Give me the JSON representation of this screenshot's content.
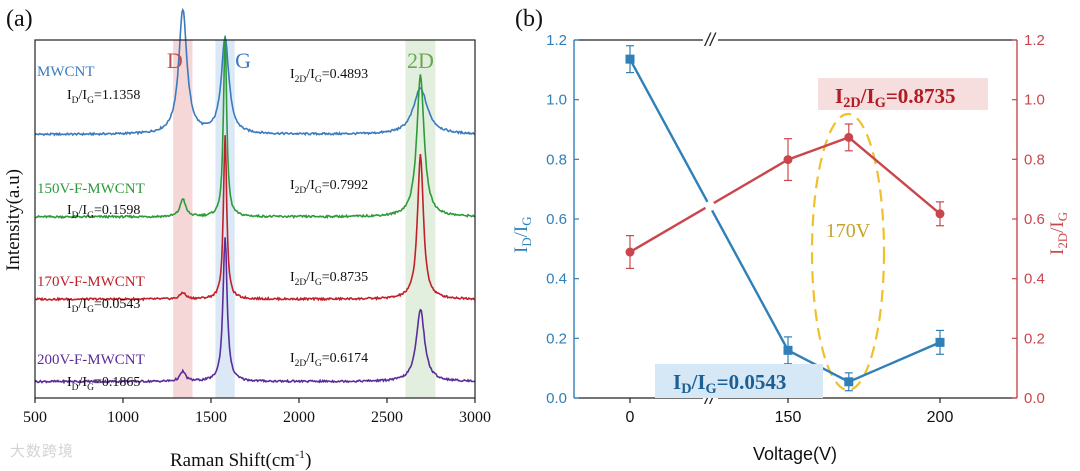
{
  "chart_data": [
    {
      "type": "line",
      "panel_label": "(a)",
      "title": "",
      "xlabel": "Raman Shift(cm",
      "xlabel_sup": "-1",
      "xlabel_end": ")",
      "ylabel": "Intensity(a.u)",
      "xlim": [
        500,
        3000
      ],
      "x_ticks": [
        500,
        1000,
        1500,
        2000,
        2500,
        3000
      ],
      "band_labels": [
        {
          "text": "D",
          "center": 1340,
          "width": 110,
          "color": "#c0504d",
          "fill": "#f2c9c9"
        },
        {
          "text": "G",
          "center": 1580,
          "width": 110,
          "color": "#3a7bbf",
          "fill": "#cfe2f3"
        },
        {
          "text": "2D",
          "center": 2690,
          "width": 170,
          "color": "#6aa84f",
          "fill": "#d9ead3"
        }
      ],
      "series": [
        {
          "name": "MWCNT",
          "color": "#3a7bbf",
          "offset": 0.8,
          "scale": 0.58,
          "peaks": [
            [
              1340,
              0.65,
              28
            ],
            [
              1580,
              0.5,
              26
            ],
            [
              2690,
              0.24,
              48
            ]
          ],
          "id_ig_label": "I",
          "id_ig_value": "=1.1358",
          "i2d_ig_value": "=0.4893"
        },
        {
          "name": "150V-F-MWCNT",
          "color": "#2e9b3a",
          "offset": 0.55,
          "scale": 1.0,
          "peaks": [
            [
              1340,
              0.055,
              18
            ],
            [
              1580,
              0.55,
              11
            ],
            [
              2690,
              0.43,
              25
            ]
          ],
          "id_ig_value": "=0.1598",
          "i2d_ig_value": "=0.7992"
        },
        {
          "name": "170V-F-MWCNT",
          "color": "#c0202a",
          "offset": 0.3,
          "scale": 1.0,
          "peaks": [
            [
              1340,
              0.02,
              18
            ],
            [
              1580,
              0.5,
              11
            ],
            [
              2690,
              0.44,
              20
            ]
          ],
          "id_ig_value": "=0.0543",
          "i2d_ig_value": "=0.8735"
        },
        {
          "name": "200V-F-MWCNT",
          "color": "#5b2d99",
          "offset": 0.05,
          "scale": 1.0,
          "peaks": [
            [
              1340,
              0.03,
              18
            ],
            [
              1580,
              0.44,
              14
            ],
            [
              2690,
              0.22,
              28
            ]
          ],
          "id_ig_value": "=0.1865",
          "i2d_ig_value": "=0.6174"
        }
      ]
    },
    {
      "type": "line",
      "panel_label": "(b)",
      "xlabel": "Voltage(V)",
      "ylabel_left": "I",
      "ylabel_right": "I",
      "x_categories": [
        "0",
        "150",
        "200"
      ],
      "x_values": [
        0,
        150,
        170,
        200
      ],
      "ylim": [
        0,
        1.2
      ],
      "y_ticks": [
        "0.0",
        "0.2",
        "0.4",
        "0.6",
        "0.8",
        "1.0",
        "1.2"
      ],
      "axis_break": "//",
      "series": [
        {
          "name": "ID/IG",
          "axis": "left",
          "color": "#2f7fb8",
          "marker": "square",
          "x": [
            0,
            150,
            170,
            200
          ],
          "y": [
            1.1358,
            0.1598,
            0.0543,
            0.1865
          ],
          "err": [
            0.045,
            0.045,
            0.03,
            0.04
          ]
        },
        {
          "name": "I2D/IG",
          "axis": "right",
          "color": "#c9474c",
          "marker": "circle",
          "x": [
            0,
            150,
            170,
            200
          ],
          "y": [
            0.4893,
            0.7992,
            0.8735,
            0.6174
          ],
          "err": [
            0.055,
            0.07,
            0.045,
            0.04
          ]
        }
      ],
      "annotations": {
        "highlight_voltage": "170V",
        "ellipse_color": "#f0c02c",
        "i2d_box": {
          "value": "=0.8735",
          "color": "#b01c22",
          "fill": "#f7dede"
        },
        "id_box": {
          "value": "=0.0543",
          "color": "#1c5f94",
          "fill": "#d6e8f5"
        }
      }
    }
  ],
  "watermark": "大数跨境"
}
